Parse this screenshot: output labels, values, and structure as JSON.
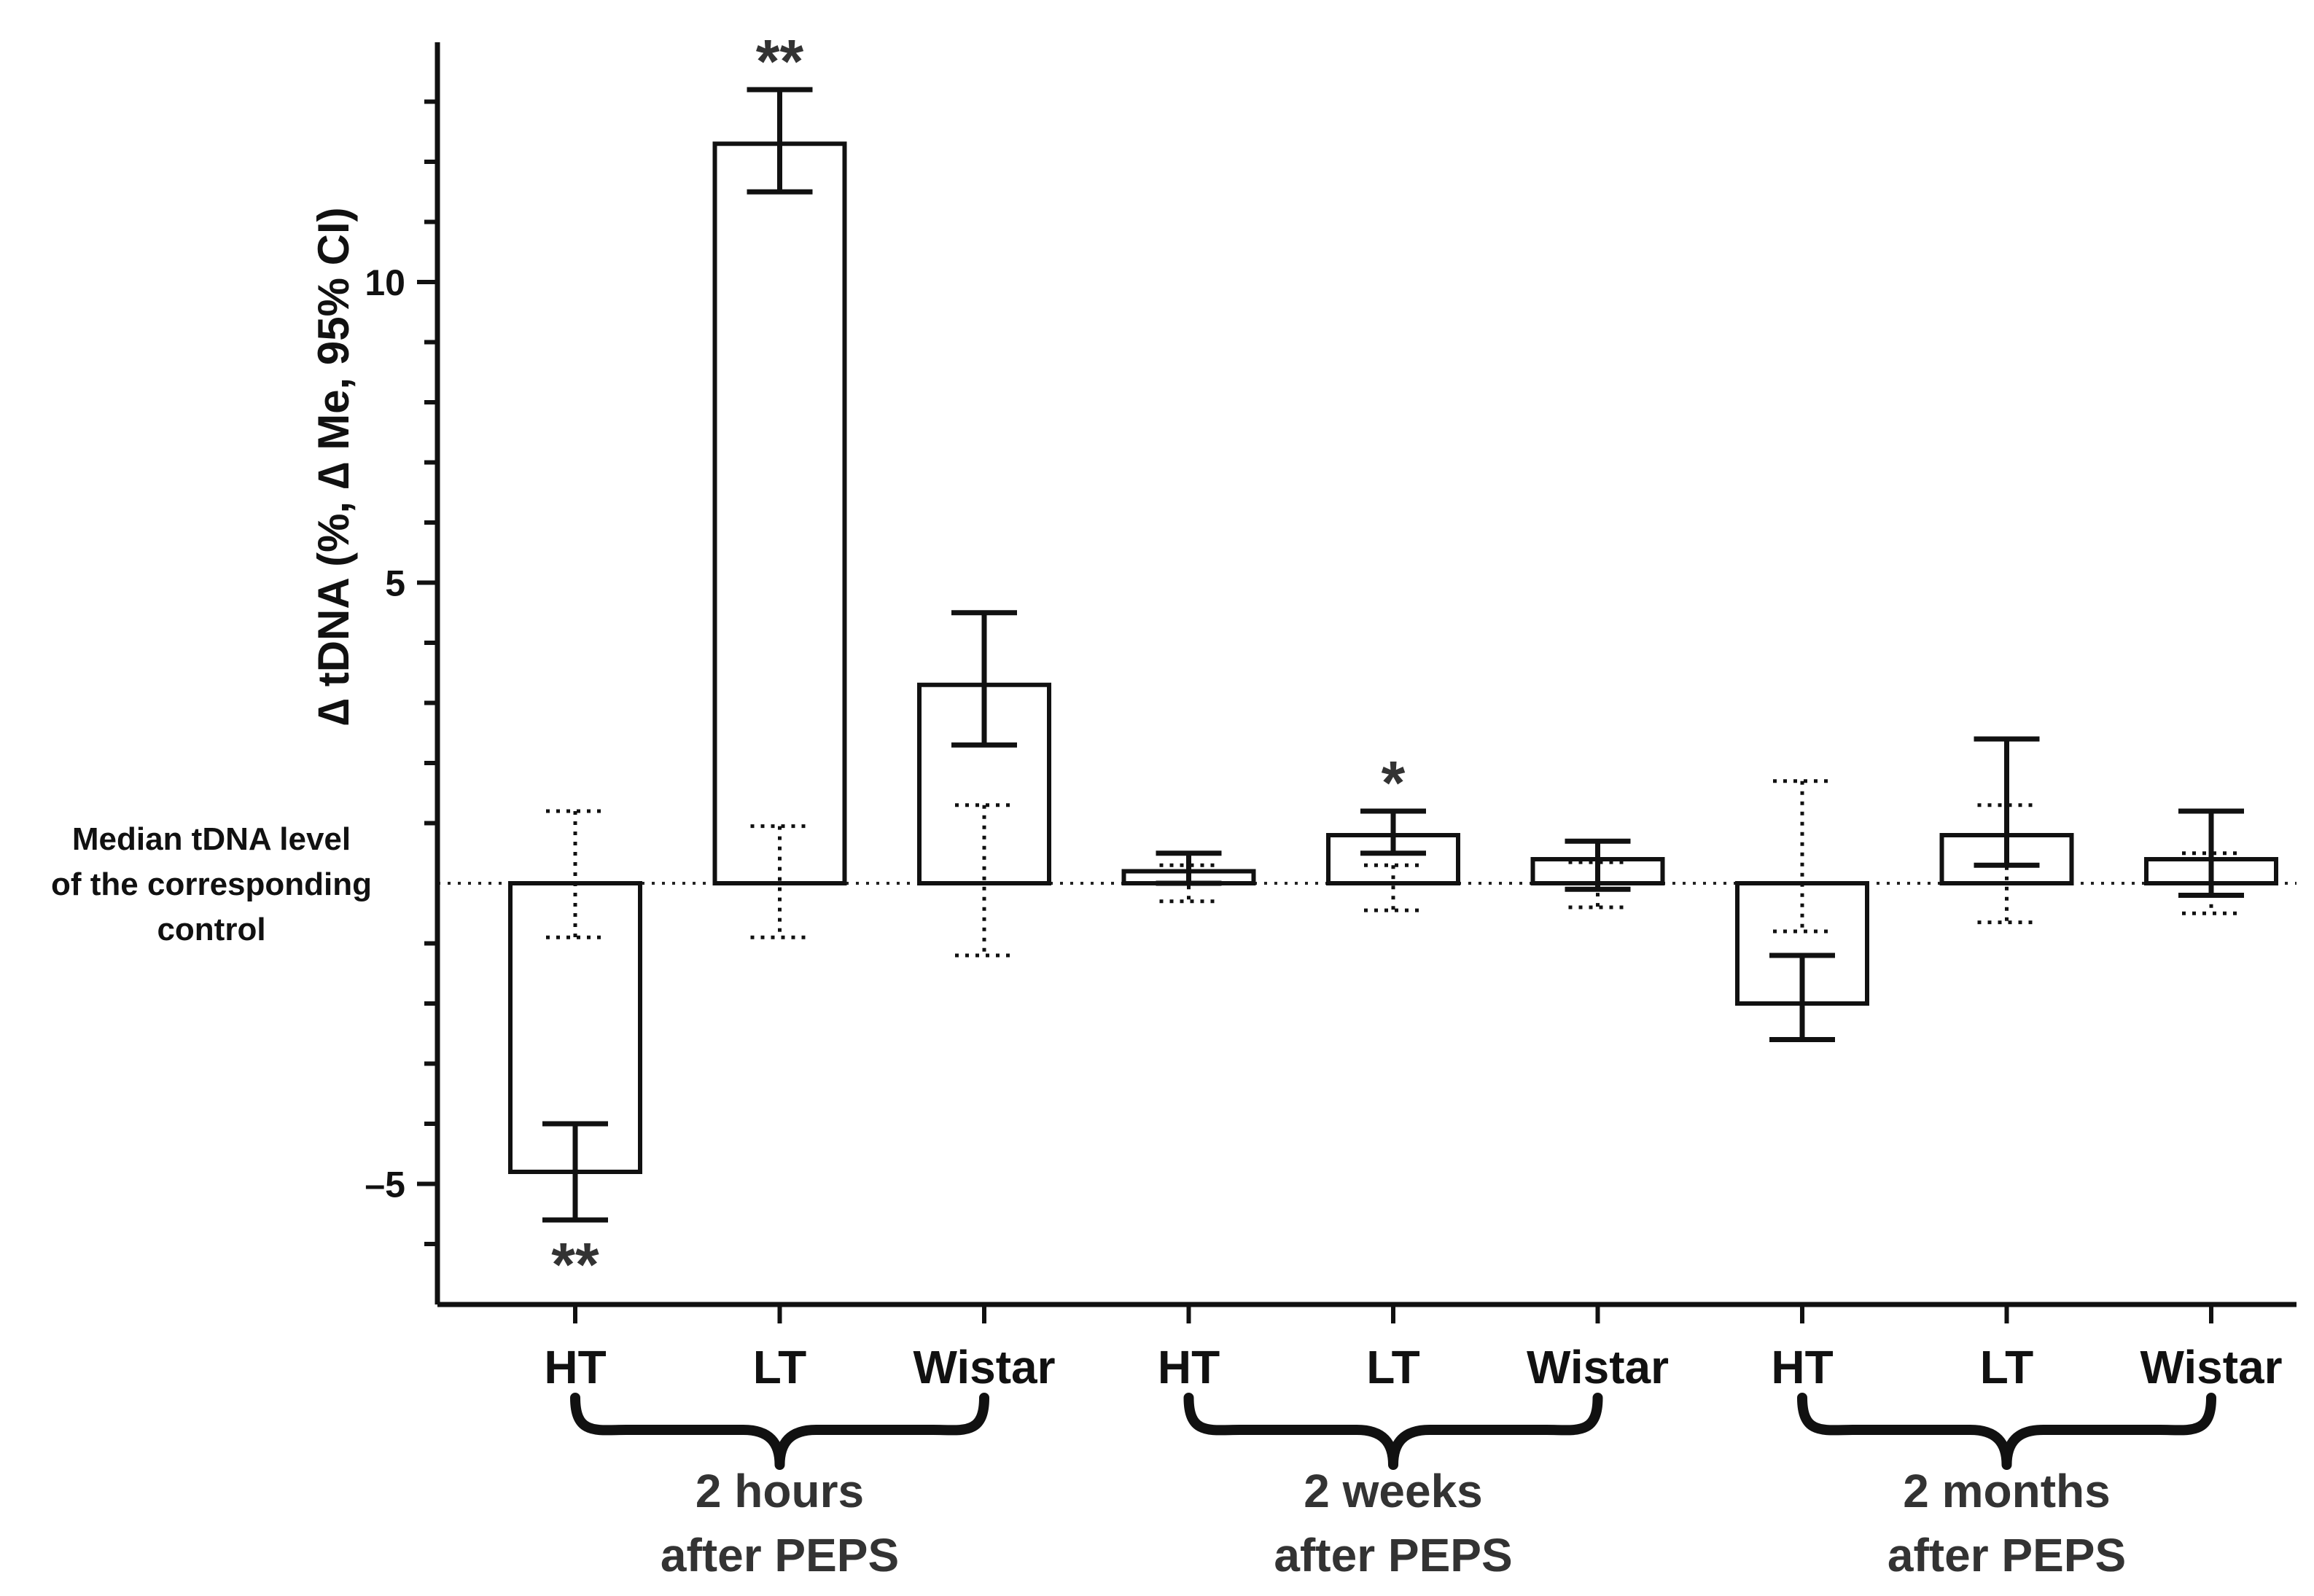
{
  "chart_data": {
    "type": "bar",
    "ylabel": "∆ tDNA (%, ∆ Me, 95% CI)",
    "ylim": [
      -6.8,
      14
    ],
    "yticks": [
      -5,
      5,
      10
    ],
    "ytick_labels": [
      "–5",
      "5",
      "10"
    ],
    "reference_line": {
      "value": 0,
      "style": "dotted",
      "label_lines": [
        "Median tDNA level",
        "of the corresponding",
        "control"
      ]
    },
    "categories": [
      "HT",
      "LT",
      "Wistar",
      "HT",
      "LT",
      "Wistar",
      "HT",
      "LT",
      "Wistar"
    ],
    "values": [
      -4.8,
      12.3,
      3.3,
      0.2,
      0.8,
      0.4,
      -2.0,
      0.8,
      0.4
    ],
    "ci_low": [
      -5.6,
      11.5,
      2.3,
      0.0,
      0.5,
      -0.1,
      -2.6,
      0.3,
      -0.2
    ],
    "ci_high": [
      -4.0,
      13.2,
      4.5,
      0.5,
      1.2,
      0.7,
      -1.2,
      2.4,
      1.2
    ],
    "control_ci_low": [
      -0.9,
      -0.9,
      -1.2,
      -0.3,
      -0.45,
      -0.4,
      -0.8,
      -0.65,
      -0.5
    ],
    "control_ci_high": [
      1.2,
      0.95,
      1.3,
      0.3,
      0.3,
      0.35,
      1.7,
      1.3,
      0.5
    ],
    "significance": [
      "**",
      "**",
      "",
      "",
      "*",
      "",
      "",
      "",
      ""
    ],
    "groups": [
      {
        "lines": [
          "2 hours",
          "after PEPS"
        ],
        "start": 0,
        "end": 2
      },
      {
        "lines": [
          "2 weeks",
          "after PEPS"
        ],
        "start": 3,
        "end": 5
      },
      {
        "lines": [
          "2 months",
          "after PEPS"
        ],
        "start": 6,
        "end": 8
      }
    ]
  }
}
